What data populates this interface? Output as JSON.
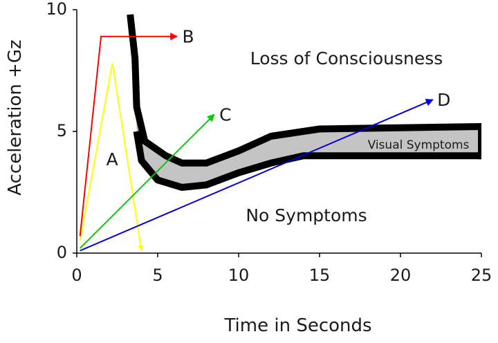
{
  "chart_data": {
    "type": "line",
    "xlabel": "Time in Seconds",
    "ylabel": "Acceleration +Gz",
    "xlim": [
      0,
      25
    ],
    "ylim": [
      0,
      10
    ],
    "x_ticks": [
      0,
      5,
      10,
      15,
      20,
      25
    ],
    "y_ticks": [
      0,
      5,
      10
    ],
    "grid": false,
    "annotations": {
      "loss_of_consciousness": "Loss of Consciousness",
      "visual_symptoms": "Visual Symptoms",
      "no_symptoms": "No Symptoms"
    },
    "tolerance_band": {
      "name": "Visual Symptoms",
      "upper": [
        {
          "x": 3.3,
          "y": 9.8
        },
        {
          "x": 3.6,
          "y": 8.0
        },
        {
          "x": 3.7,
          "y": 6.0
        },
        {
          "x": 4.2,
          "y": 4.6
        },
        {
          "x": 5.5,
          "y": 4.0
        },
        {
          "x": 6.5,
          "y": 3.7
        },
        {
          "x": 8.0,
          "y": 3.7
        },
        {
          "x": 10.0,
          "y": 4.2
        },
        {
          "x": 12.0,
          "y": 4.8
        },
        {
          "x": 15.0,
          "y": 5.1
        },
        {
          "x": 25.0,
          "y": 5.2
        }
      ],
      "lower": [
        {
          "x": 3.7,
          "y": 5.0
        },
        {
          "x": 4.0,
          "y": 3.8
        },
        {
          "x": 5.0,
          "y": 3.0
        },
        {
          "x": 6.5,
          "y": 2.7
        },
        {
          "x": 8.0,
          "y": 2.8
        },
        {
          "x": 10.0,
          "y": 3.3
        },
        {
          "x": 12.0,
          "y": 3.7
        },
        {
          "x": 14.0,
          "y": 4.0
        },
        {
          "x": 25.0,
          "y": 4.0
        }
      ]
    },
    "series": [
      {
        "name": "A",
        "color": "#ffff00",
        "points": [
          {
            "x": 0.2,
            "y": 0.5
          },
          {
            "x": 2.2,
            "y": 7.8
          },
          {
            "x": 4.0,
            "y": 0.1
          }
        ]
      },
      {
        "name": "B",
        "color": "#ff0000",
        "points": [
          {
            "x": 0.2,
            "y": 0.7
          },
          {
            "x": 1.5,
            "y": 8.9
          },
          {
            "x": 6.2,
            "y": 8.9
          }
        ]
      },
      {
        "name": "C",
        "color": "#00cc00",
        "points": [
          {
            "x": 0.2,
            "y": 0.2
          },
          {
            "x": 8.5,
            "y": 5.7
          }
        ]
      },
      {
        "name": "D",
        "color": "#0000dd",
        "points": [
          {
            "x": 0.2,
            "y": 0.1
          },
          {
            "x": 22.0,
            "y": 6.3
          }
        ]
      }
    ]
  }
}
